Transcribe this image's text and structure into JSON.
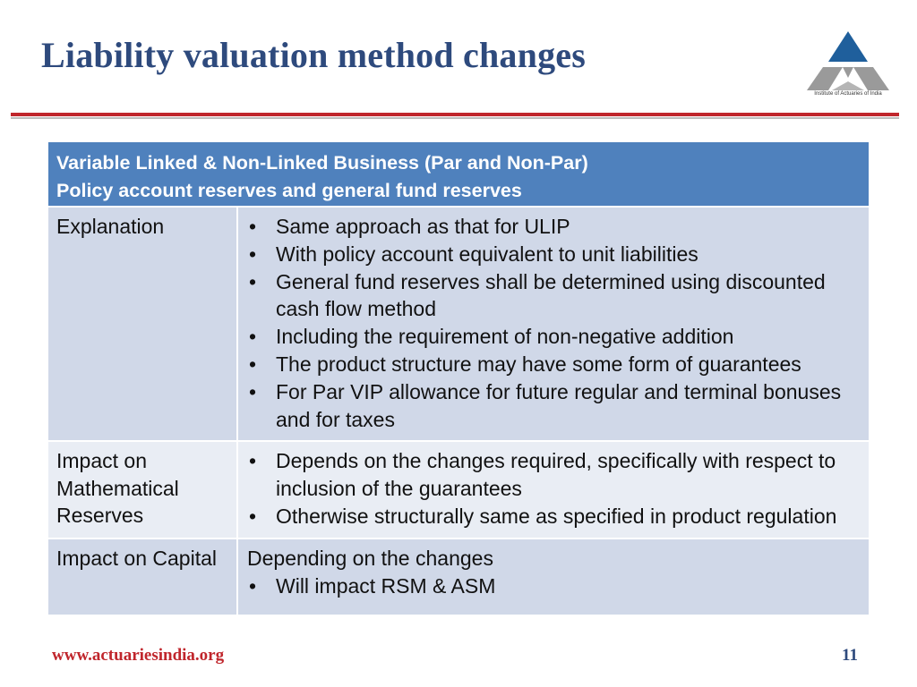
{
  "slide": {
    "title": "Liability valuation method changes",
    "page_number": "11",
    "footer_url": "www.actuariesindia.org"
  },
  "logo": {
    "caption": "Institute of Actuaries of India",
    "colors": {
      "top": "#1F5F9C",
      "sides": "#9A9A9A"
    }
  },
  "colors": {
    "title": "#2E4A7D",
    "accent_red": "#C0262C",
    "table_header": "#4F81BD",
    "row_dark": "#D0D8E8",
    "row_light": "#E9EDF4"
  },
  "table": {
    "header": [
      "Variable Linked & Non-Linked Business (Par and Non-Par)",
      "Policy account reserves and general fund reserves"
    ],
    "rows": [
      {
        "label": "Explanation",
        "bullets": [
          "Same approach as that for ULIP",
          "With policy account equivalent to unit liabilities",
          "General fund reserves shall be determined using discounted cash flow method",
          "Including the requirement of non-negative addition",
          "The product structure may have some form of guarantees",
          "For Par VIP allowance for future regular and terminal bonuses and for taxes"
        ]
      },
      {
        "label": "Impact on Mathematical Reserves",
        "bullets": [
          "Depends on the changes required, specifically with respect to inclusion of the guarantees",
          "Otherwise structurally same as specified in product regulation"
        ]
      },
      {
        "label": "Impact on Capital",
        "lead_text": "Depending on the changes",
        "bullets": [
          "Will impact RSM & ASM"
        ]
      }
    ]
  }
}
